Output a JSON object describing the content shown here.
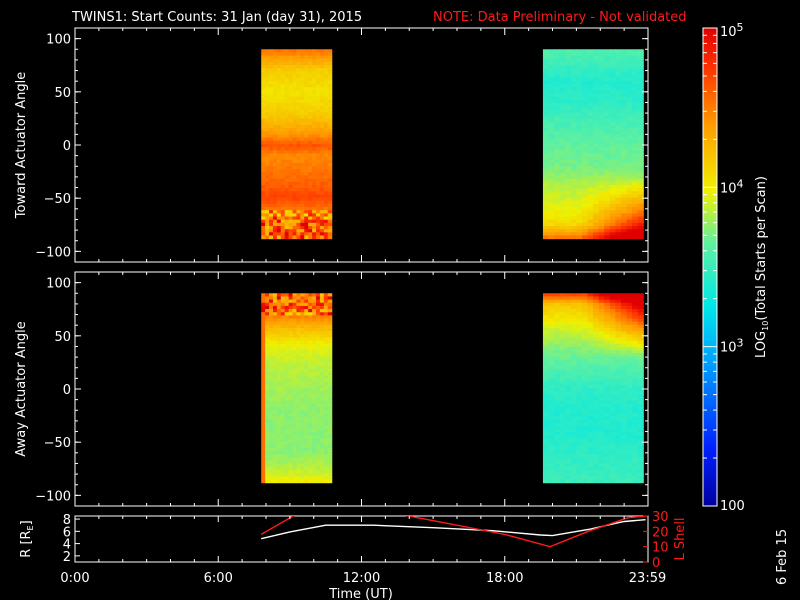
{
  "title": {
    "main": "TWINS1: Start Counts: 31 Jan (day  31), 2015",
    "note": "NOTE: Data Preliminary - Not validated",
    "note_color": "#ff1a1a"
  },
  "date_stamp": "6 Feb 15",
  "chart_data": [
    {
      "type": "heatmap",
      "panel": "toward",
      "ylabel": "Toward Actuator Angle",
      "ylim": [
        -110,
        110
      ],
      "yticks": [
        -100,
        -50,
        0,
        50,
        100
      ],
      "xlim": [
        0,
        24
      ],
      "x_unit": "hours UT",
      "blocks": [
        {
          "x_start": 7.8,
          "x_end": 10.75,
          "y_start": -88,
          "y_end": 90,
          "profile": [
            [
              90,
              4.55
            ],
            [
              70,
              4.15
            ],
            [
              50,
              4.05
            ],
            [
              30,
              4.15
            ],
            [
              10,
              4.4
            ],
            [
              0,
              4.65
            ],
            [
              -10,
              4.45
            ],
            [
              -30,
              4.55
            ],
            [
              -50,
              4.7
            ],
            [
              -65,
              4.45
            ],
            [
              -75,
              4.65
            ],
            [
              -88,
              4.6
            ]
          ],
          "noisy_below": -60
        },
        {
          "x_start": 19.6,
          "x_end": 23.8,
          "y_start": -88,
          "y_end": 90,
          "profile": [
            [
              90,
              3.6
            ],
            [
              60,
              3.4
            ],
            [
              40,
              3.45
            ],
            [
              20,
              3.55
            ],
            [
              0,
              3.65
            ],
            [
              -20,
              3.7
            ],
            [
              -40,
              3.85
            ],
            [
              -60,
              3.95
            ],
            [
              -75,
              4.1
            ],
            [
              -88,
              4.55
            ]
          ],
          "bottom_right_high": true
        }
      ]
    },
    {
      "type": "heatmap",
      "panel": "away",
      "ylabel": "Away Actuator Angle",
      "ylim": [
        -110,
        110
      ],
      "yticks": [
        -100,
        -50,
        0,
        50,
        100
      ],
      "xlim": [
        0,
        24
      ],
      "x_unit": "hours UT",
      "blocks": [
        {
          "x_start": 7.8,
          "x_end": 10.75,
          "y_start": -88,
          "y_end": 90,
          "profile": [
            [
              90,
              4.6
            ],
            [
              75,
              4.65
            ],
            [
              60,
              4.3
            ],
            [
              40,
              3.95
            ],
            [
              20,
              3.85
            ],
            [
              0,
              3.8
            ],
            [
              -20,
              3.75
            ],
            [
              -40,
              3.75
            ],
            [
              -60,
              3.75
            ],
            [
              -75,
              3.85
            ],
            [
              -88,
              4.0
            ]
          ],
          "noisy_above": 70,
          "left_edge_high": true
        },
        {
          "x_start": 19.6,
          "x_end": 23.8,
          "y_start": -88,
          "y_end": 90,
          "profile": [
            [
              90,
              4.75
            ],
            [
              80,
              4.2
            ],
            [
              60,
              3.95
            ],
            [
              40,
              3.75
            ],
            [
              20,
              3.6
            ],
            [
              0,
              3.45
            ],
            [
              -20,
              3.4
            ],
            [
              -40,
              3.4
            ],
            [
              -60,
              3.45
            ],
            [
              -88,
              3.5
            ]
          ],
          "top_right_high": true
        }
      ]
    },
    {
      "type": "line",
      "panel": "orbit",
      "ylabel_left": "R [R",
      "ylabel_left_sub": "E",
      "ylabel_left_end": "]",
      "ylabel_right": "L Shell",
      "ylim_left": [
        1,
        8.5
      ],
      "yticks_left": [
        2,
        4,
        6,
        8
      ],
      "ylim_right": [
        0,
        30
      ],
      "yticks_right": [
        0,
        10,
        20,
        30
      ],
      "series": [
        {
          "name": "R",
          "axis": "left",
          "color": "#ffffff",
          "x": [
            7.8,
            9.0,
            10.5,
            12.5,
            15.0,
            17.5,
            19.5,
            20.0,
            21.5,
            23.0,
            23.9
          ],
          "y": [
            4.8,
            5.9,
            7.0,
            7.0,
            6.6,
            6.1,
            5.4,
            5.3,
            6.3,
            7.6,
            7.9
          ]
        },
        {
          "name": "L Shell",
          "axis": "right",
          "color": "#ff1a1a",
          "x": [
            7.8,
            9.2,
            13.8,
            16.0,
            18.0,
            19.9,
            21.5,
            23.2,
            23.9
          ],
          "y": [
            18.0,
            30.5,
            30.5,
            24.0,
            18.0,
            10.0,
            20.0,
            29.0,
            30.0
          ]
        }
      ]
    }
  ],
  "x_axis": {
    "label": "Time (UT)",
    "ticks": [
      {
        "value": 0,
        "label": "0:00"
      },
      {
        "value": 6,
        "label": "6:00"
      },
      {
        "value": 12,
        "label": "12:00"
      },
      {
        "value": 18,
        "label": "18:00"
      },
      {
        "value": 23.98,
        "label": "23:59"
      }
    ]
  },
  "colorbar": {
    "label": "LOG",
    "label_sub": "10",
    "label_end": "(Total Starts per Scan)",
    "log_min": 2,
    "log_max": 5,
    "ticks": [
      {
        "value": 5,
        "base": "10",
        "exp": "5"
      },
      {
        "value": 4,
        "base": "10",
        "exp": "4"
      },
      {
        "value": 3,
        "base": "10",
        "exp": "3"
      },
      {
        "value": 2,
        "base": "100",
        "exp": ""
      }
    ]
  }
}
